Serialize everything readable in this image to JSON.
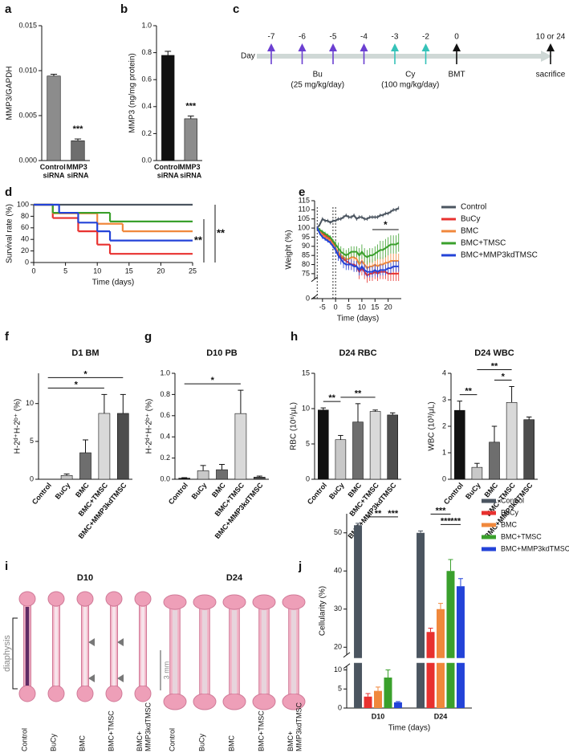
{
  "chart_data": [
    {
      "panel": "a",
      "type": "bar",
      "ylabel": "MMP3/GAPDH",
      "categories": [
        "Control siRNA",
        "MMP3 siRNA"
      ],
      "values": [
        0.0094,
        0.0022
      ],
      "errors": [
        0.0002,
        0.0002
      ],
      "colors": [
        "#8c8c8c",
        "#6e6e6e"
      ],
      "ylim": [
        0,
        0.015
      ],
      "yticks": [
        {
          "value": 0,
          "label": "0.000"
        },
        {
          "value": 0.005,
          "label": "0.005"
        },
        {
          "value": 0.01,
          "label": "0.010"
        },
        {
          "value": 0.015,
          "label": "0.015"
        }
      ],
      "significance": [
        {
          "label": "***",
          "bar": "MMP3 siRNA"
        }
      ]
    },
    {
      "panel": "b",
      "type": "bar",
      "ylabel": "MMP3 (ng/mg protein)",
      "categories": [
        "Control siRNA",
        "MMP3 siRNA"
      ],
      "values": [
        0.78,
        0.31
      ],
      "errors": [
        0.03,
        0.02
      ],
      "colors": [
        "#111111",
        "#8c8c8c"
      ],
      "ylim": [
        0,
        1
      ],
      "yticks": [
        {
          "value": 0,
          "label": "0.0"
        },
        0.2,
        0.4,
        0.6,
        0.8,
        {
          "value": 1,
          "label": "1.0"
        }
      ],
      "significance": [
        {
          "label": "***",
          "bar": "MMP3 siRNA"
        }
      ]
    },
    {
      "panel": "d",
      "type": "step",
      "ylabel": "Survival rate (%)",
      "xlabel": "Time (days)",
      "xlim": [
        0,
        25
      ],
      "xticks": [
        0,
        5,
        10,
        15,
        20,
        25
      ],
      "ylim": [
        0,
        100
      ],
      "yticks": [
        0,
        20,
        40,
        60,
        80,
        100
      ],
      "series": [
        {
          "color": "#4b5560",
          "x": [
            0,
            25
          ],
          "values": [
            100,
            100
          ]
        },
        {
          "color": "#e8312f",
          "x": [
            0,
            3,
            7,
            10,
            12,
            25
          ],
          "values": [
            100,
            77,
            54,
            31,
            15,
            15
          ]
        },
        {
          "color": "#f0883c",
          "x": [
            0,
            3,
            10,
            14,
            25
          ],
          "values": [
            100,
            85,
            67,
            54,
            54
          ]
        },
        {
          "color": "#3aa02c",
          "x": [
            0,
            3,
            12,
            25
          ],
          "values": [
            100,
            86,
            71,
            71
          ]
        },
        {
          "color": "#2343d8",
          "x": [
            0,
            4,
            7,
            10,
            12,
            25
          ],
          "values": [
            100,
            86,
            69,
            54,
            38,
            38
          ]
        }
      ],
      "significance": [
        "**",
        "**"
      ]
    },
    {
      "panel": "e",
      "type": "line",
      "ylabel": "Weight (%)",
      "xlabel": "Time (days)",
      "xlim": [
        -8,
        25
      ],
      "xticks": [
        -5,
        0,
        5,
        10,
        15,
        20
      ],
      "ylim": [
        0,
        115
      ],
      "ybreak": [
        1,
        72
      ],
      "yticks": [
        0,
        75,
        80,
        85,
        90,
        95,
        100,
        105,
        110,
        115
      ],
      "reference_lines": [
        -7,
        -1,
        0
      ],
      "legend": "right",
      "x": [
        -7,
        -6,
        -5,
        -4,
        -3,
        -2,
        -1,
        0,
        1,
        2,
        3,
        4,
        5,
        6,
        7,
        8,
        9,
        10,
        11,
        12,
        13,
        14,
        15,
        16,
        17,
        18,
        19,
        20,
        21,
        22,
        23,
        24
      ],
      "series": [
        {
          "name": "Control",
          "color": "#4b5560",
          "values": [
            100,
            102,
            105,
            104,
            104,
            103,
            104,
            104,
            105,
            105,
            106,
            107,
            106,
            106,
            107,
            105,
            106,
            106,
            105,
            105,
            106,
            106,
            106,
            106,
            107,
            107,
            108,
            108,
            109,
            110,
            110,
            111
          ],
          "errors": [
            1,
            1,
            1,
            1,
            1,
            1,
            1,
            1,
            1,
            1,
            1,
            1,
            1,
            1,
            1,
            1,
            1,
            1,
            1,
            1,
            1,
            1,
            1,
            1,
            1,
            1,
            1,
            1,
            1,
            1,
            1,
            1
          ]
        },
        {
          "name": "BuCy",
          "color": "#e8312f",
          "values": [
            100,
            99,
            97,
            96,
            95,
            94,
            92,
            89,
            86,
            84,
            83,
            82,
            81,
            80,
            80,
            79,
            76,
            78,
            76,
            74,
            75,
            75,
            76,
            75,
            76,
            76,
            76,
            75,
            75,
            75,
            75,
            75
          ],
          "errors": [
            1,
            1,
            1,
            1,
            1,
            1,
            1,
            2,
            3,
            3,
            3,
            3,
            3,
            3,
            3,
            3,
            4,
            4,
            4,
            4,
            4,
            4,
            4,
            4,
            4,
            4,
            4,
            4,
            4,
            4,
            4,
            4
          ]
        },
        {
          "name": "BMC",
          "color": "#f0883c",
          "values": [
            100,
            98,
            96,
            95,
            94,
            93,
            91,
            89,
            87,
            85,
            84,
            83,
            83,
            84,
            84,
            83,
            80,
            82,
            80,
            78,
            79,
            79,
            80,
            79,
            80,
            80,
            81,
            81,
            82,
            82,
            82,
            82
          ],
          "errors": [
            1,
            1,
            1,
            1,
            1,
            1,
            1,
            2,
            3,
            3,
            3,
            3,
            3,
            3,
            3,
            3,
            4,
            4,
            4,
            4,
            4,
            4,
            4,
            4,
            4,
            4,
            4,
            4,
            4,
            4,
            4,
            4
          ]
        },
        {
          "name": "BMC+TMSC",
          "color": "#3aa02c",
          "values": [
            100,
            99,
            98,
            97,
            96,
            95,
            93,
            91,
            89,
            87,
            86,
            85,
            86,
            87,
            87,
            87,
            85,
            87,
            85,
            84,
            85,
            85,
            86,
            87,
            88,
            88,
            89,
            90,
            91,
            91,
            91,
            92
          ],
          "errors": [
            1,
            1,
            1,
            1,
            1,
            1,
            1,
            2,
            3,
            3,
            3,
            3,
            3,
            3,
            3,
            3,
            4,
            4,
            4,
            4,
            4,
            4,
            4,
            4,
            5,
            5,
            5,
            5,
            5,
            5,
            5,
            5
          ]
        },
        {
          "name": "BMC+MMP3kdTMSC",
          "color": "#2343d8",
          "values": [
            100,
            97,
            95,
            94,
            93,
            92,
            90,
            88,
            85,
            83,
            81,
            80,
            80,
            80,
            79,
            79,
            77,
            79,
            77,
            76,
            76,
            76,
            77,
            76,
            77,
            77,
            77,
            78,
            78,
            79,
            79,
            79
          ],
          "errors": [
            1,
            1,
            1,
            1,
            1,
            1,
            1,
            2,
            3,
            3,
            3,
            3,
            3,
            3,
            3,
            3,
            3,
            3,
            3,
            3,
            3,
            3,
            3,
            3,
            3,
            3,
            3,
            3,
            3,
            3,
            3,
            3
          ]
        }
      ],
      "significance": [
        {
          "label": "*",
          "x": [
            14,
            24
          ]
        }
      ]
    },
    {
      "panel": "f",
      "type": "bar",
      "title": "D1 BM",
      "ylabel": "H-2ᵈ⁺H-2ᵇ⁺ (%)",
      "categories": [
        "Control",
        "BuCy",
        "BMC",
        "BMC+TMSC",
        "BMC+MMP3kdTMSC"
      ],
      "values": [
        0,
        0.5,
        3.5,
        8.7,
        8.7
      ],
      "errors": [
        0,
        0.2,
        1.7,
        2.5,
        2.5
      ],
      "colors": [
        "#111111",
        "#c8c8c8",
        "#6e6e6e",
        "#d9d9d9",
        "#4d4d4d"
      ],
      "ylim": [
        0,
        14
      ],
      "yticks": [
        0,
        5,
        10
      ],
      "significance": [
        {
          "label": "*",
          "pair": [
            "Control",
            "BMC+TMSC"
          ]
        },
        {
          "label": "*",
          "pair": [
            "Control",
            "BMC+MMP3kdTMSC"
          ]
        }
      ]
    },
    {
      "panel": "g",
      "type": "bar",
      "title": "D10 PB",
      "ylabel": "H-2ᵈ⁺H-2ᵇ⁺ (%)",
      "categories": [
        "Control",
        "BuCy",
        "BMC",
        "BMC+TMSC",
        "BMC+MMP3kdTMSC"
      ],
      "values": [
        0.01,
        0.08,
        0.09,
        0.62,
        0.02
      ],
      "errors": [
        0.005,
        0.05,
        0.05,
        0.22,
        0.01
      ],
      "colors": [
        "#111111",
        "#c8c8c8",
        "#6e6e6e",
        "#d9d9d9",
        "#4d4d4d"
      ],
      "ylim": [
        0,
        1
      ],
      "yticks": [
        {
          "value": 0,
          "label": "0.0"
        },
        0.2,
        0.4,
        0.6,
        0.8,
        {
          "value": 1,
          "label": "1.0"
        }
      ],
      "significance": [
        {
          "label": "*",
          "pair": [
            "Control",
            "BMC+TMSC"
          ]
        }
      ]
    },
    {
      "panel": "h",
      "type": "bar",
      "title": "D24 RBC",
      "ylabel": "RBC (10⁶/μL)",
      "categories": [
        "Control",
        "BuCy",
        "BMC",
        "BMC+TMSC",
        "BMC+MMP3kdTMSC"
      ],
      "values": [
        9.8,
        5.6,
        8.1,
        9.6,
        9.1
      ],
      "errors": [
        0.3,
        0.6,
        2.6,
        0.2,
        0.3
      ],
      "colors": [
        "#111111",
        "#c8c8c8",
        "#6e6e6e",
        "#d9d9d9",
        "#4d4d4d"
      ],
      "ylim": [
        0,
        15
      ],
      "yticks": [
        0,
        5,
        10,
        15
      ],
      "significance": [
        {
          "label": "**",
          "pair": [
            "Control",
            "BuCy"
          ]
        },
        {
          "label": "**",
          "pair": [
            "BuCy",
            "BMC+TMSC"
          ]
        }
      ]
    },
    {
      "type": "bar",
      "title": "D24 WBC",
      "ylabel": "WBC (10³/μL)",
      "categories": [
        "Control",
        "BuCy",
        "BMC",
        "BMC+TMSC",
        "BMC+MMP3kdTMSC"
      ],
      "values": [
        2.6,
        0.45,
        1.4,
        2.9,
        2.25
      ],
      "errors": [
        0.35,
        0.15,
        0.6,
        0.6,
        0.1
      ],
      "colors": [
        "#111111",
        "#c8c8c8",
        "#6e6e6e",
        "#d9d9d9",
        "#4d4d4d"
      ],
      "ylim": [
        0,
        4
      ],
      "yticks": [
        0,
        1,
        2,
        3,
        4
      ],
      "significance": [
        {
          "label": "**",
          "pair": [
            "Control",
            "BuCy"
          ]
        },
        {
          "label": "**",
          "pair": [
            "BuCy",
            "BMC+TMSC"
          ]
        },
        {
          "label": "*",
          "pair": [
            "BMC",
            "BMC+TMSC"
          ]
        }
      ]
    },
    {
      "panel": "j",
      "type": "grouped_bar",
      "ylabel": "Cellularity (%)",
      "xlabel": "Time (days)",
      "categories": [
        "D10",
        "D24"
      ],
      "ylim": [
        0,
        55
      ],
      "ybreak": [
        11,
        18
      ],
      "yticks": [
        0,
        5,
        10,
        20,
        30,
        40,
        50
      ],
      "legend": "upper right",
      "series": [
        {
          "name": "Control",
          "color": "#4b5560",
          "values": [
            52,
            50
          ],
          "errors": [
            0.5,
            0.5
          ]
        },
        {
          "name": "BuCy",
          "color": "#e8312f",
          "values": [
            3,
            24
          ],
          "errors": [
            0.8,
            1
          ]
        },
        {
          "name": "BMC",
          "color": "#f0883c",
          "values": [
            4.5,
            30
          ],
          "errors": [
            1,
            1.5
          ]
        },
        {
          "name": "BMC+TMSC",
          "color": "#3aa02c",
          "values": [
            8,
            40
          ],
          "errors": [
            2,
            3
          ]
        },
        {
          "name": "BMC+MMP3kdTMSC",
          "color": "#2343d8",
          "values": [
            1.5,
            36
          ],
          "errors": [
            0.2,
            2
          ]
        }
      ],
      "significance": [
        {
          "label": "**",
          "category": "D10",
          "pair": [
            "BuCy",
            "BMC+TMSC"
          ]
        },
        {
          "label": "***",
          "category": "D10",
          "pair": [
            "BMC+TMSC",
            "BMC+MMP3kdTMSC"
          ]
        },
        {
          "label": "***",
          "category": "D24",
          "pair": [
            "BuCy",
            "BMC+TMSC"
          ]
        },
        {
          "label": "***",
          "category": "D24",
          "pair": [
            "BMC",
            "BMC+TMSC"
          ]
        },
        {
          "label": "***",
          "category": "D24",
          "pair": [
            "BMC+TMSC",
            "BMC+MMP3kdTMSC"
          ]
        }
      ]
    }
  ],
  "timeline": {
    "panel": "c",
    "axis_label": "Day",
    "days": [
      -7,
      -6,
      -5,
      -4,
      -3,
      -2,
      0
    ],
    "end_label": "10 or 24",
    "end_event": "sacrifice",
    "bu": {
      "label": "Bu",
      "dose": "(25 mg/kg/day)",
      "days": [
        -7,
        -6,
        -5,
        -4
      ],
      "color": "#6b3fd1"
    },
    "cy": {
      "label": "Cy",
      "dose": "(100 mg/kg/day)",
      "days": [
        -3,
        -2
      ],
      "color": "#35c2b8"
    },
    "bmt": {
      "label": "BMT",
      "day": 0
    }
  },
  "histology": {
    "panel": "i",
    "groups": [
      "D10",
      "D24"
    ],
    "samples": [
      "Control",
      "BuCy",
      "BMC",
      "BMC+TMSC",
      "BMC+ MMP3kdTMSC"
    ],
    "region_label": "diaphysis",
    "scale_label": "3 mm"
  }
}
